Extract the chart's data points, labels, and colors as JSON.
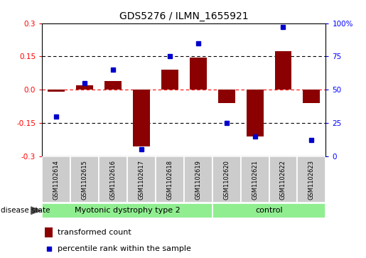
{
  "title": "GDS5276 / ILMN_1655921",
  "samples": [
    "GSM1102614",
    "GSM1102615",
    "GSM1102616",
    "GSM1102617",
    "GSM1102618",
    "GSM1102619",
    "GSM1102620",
    "GSM1102621",
    "GSM1102622",
    "GSM1102623"
  ],
  "transformed_count": [
    -0.01,
    0.02,
    0.04,
    -0.255,
    0.09,
    0.145,
    -0.06,
    -0.21,
    0.175,
    -0.06
  ],
  "percentile_rank": [
    30,
    55,
    65,
    5,
    75,
    85,
    25,
    15,
    97,
    12
  ],
  "disease_groups": [
    {
      "label": "Myotonic dystrophy type 2",
      "start": 0,
      "end": 5,
      "color": "#90ee90"
    },
    {
      "label": "control",
      "start": 6,
      "end": 9,
      "color": "#90ee90"
    }
  ],
  "bar_color": "#8B0000",
  "dot_color": "#0000CC",
  "ylim_left": [
    -0.3,
    0.3
  ],
  "ylim_right": [
    0,
    100
  ],
  "yticks_left": [
    -0.3,
    -0.15,
    0.0,
    0.15,
    0.3
  ],
  "yticks_right": [
    0,
    25,
    50,
    75,
    100
  ],
  "ytick_labels_right": [
    "0",
    "25",
    "50",
    "75",
    "100%"
  ],
  "sample_box_color": "#cccccc",
  "disease_state_label": "disease state",
  "legend_bar_label": "transformed count",
  "legend_dot_label": "percentile rank within the sample",
  "figsize": [
    5.15,
    3.63
  ],
  "dpi": 100
}
